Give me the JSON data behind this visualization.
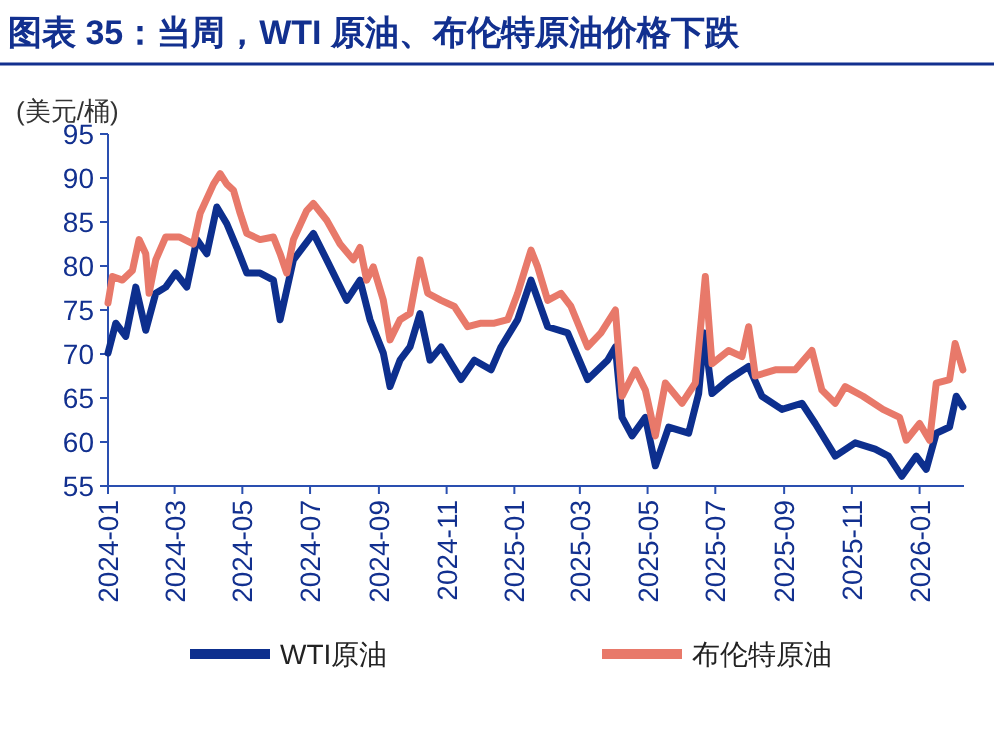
{
  "chart_data": {
    "type": "line",
    "title": "图表 35：当周，WTI 原油、布伦特原油价格下跌",
    "ylabel": "(美元/桶)",
    "xlim": [
      "2024-01-01",
      "2026-02-10"
    ],
    "ylim": [
      55,
      95
    ],
    "yticks": [
      55,
      60,
      65,
      70,
      75,
      80,
      85,
      90,
      95
    ],
    "xticks": [
      "2024-01",
      "2024-03",
      "2024-05",
      "2024-07",
      "2024-09",
      "2024-11",
      "2025-01",
      "2025-03",
      "2025-05",
      "2025-07",
      "2025-09",
      "2025-11",
      "2026-01"
    ],
    "legend": "bottom",
    "series": [
      {
        "name": "WTI原油",
        "color": "#0d2f8e",
        "x": [
          "2024-01-01",
          "2024-01-08",
          "2024-01-17",
          "2024-01-26",
          "2024-02-04",
          "2024-02-13",
          "2024-02-22",
          "2024-03-02",
          "2024-03-12",
          "2024-03-21",
          "2024-03-30",
          "2024-04-08",
          "2024-04-17",
          "2024-04-26",
          "2024-05-05",
          "2024-05-17",
          "2024-05-29",
          "2024-06-04",
          "2024-06-16",
          "2024-07-04",
          "2024-07-16",
          "2024-08-03",
          "2024-08-15",
          "2024-08-24",
          "2024-09-05",
          "2024-09-11",
          "2024-09-20",
          "2024-09-29",
          "2024-10-08",
          "2024-10-17",
          "2024-10-27",
          "2024-11-14",
          "2024-11-26",
          "2024-12-11",
          "2024-12-20",
          "2025-01-04",
          "2025-01-16",
          "2025-01-31",
          "2025-02-18",
          "2025-03-08",
          "2025-03-26",
          "2025-04-02",
          "2025-04-08",
          "2025-04-17",
          "2025-04-29",
          "2025-05-08",
          "2025-05-20",
          "2025-06-07",
          "2025-06-16",
          "2025-06-21",
          "2025-06-28",
          "2025-07-13",
          "2025-07-31",
          "2025-08-12",
          "2025-08-30",
          "2025-09-17",
          "2025-09-29",
          "2025-10-17",
          "2025-11-04",
          "2025-11-22",
          "2025-12-04",
          "2025-12-16",
          "2025-12-29",
          "2026-01-07",
          "2026-01-16",
          "2026-01-28",
          "2026-02-03",
          "2026-02-09"
        ],
        "values": [
          70.1,
          73.5,
          72,
          77.6,
          72.7,
          76.9,
          77.6,
          79.2,
          77.6,
          83,
          81.4,
          86.7,
          84.8,
          82.1,
          79.2,
          79.2,
          78.4,
          73.9,
          80.7,
          83.7,
          80.7,
          76.1,
          78.4,
          73.9,
          70.1,
          66.3,
          69.3,
          70.8,
          74.6,
          69.3,
          70.8,
          67.1,
          69.3,
          68.2,
          70.8,
          73.9,
          78.4,
          73.1,
          72.4,
          67.1,
          69.3,
          70.8,
          62.8,
          60.7,
          62.8,
          57.3,
          61.7,
          61,
          65.5,
          72.4,
          65.5,
          67.1,
          68.6,
          65.2,
          63.7,
          64.4,
          62.1,
          58.4,
          59.9,
          59.2,
          58.4,
          56.1,
          58.4,
          56.9,
          61,
          61.7,
          65.2,
          64
        ]
      },
      {
        "name": "布伦特原油",
        "color": "#e8796a",
        "x": [
          "2024-01-01",
          "2024-01-05",
          "2024-01-14",
          "2024-01-23",
          "2024-01-29",
          "2024-02-04",
          "2024-02-07",
          "2024-02-13",
          "2024-02-22",
          "2024-03-05",
          "2024-03-18",
          "2024-03-24",
          "2024-04-05",
          "2024-04-11",
          "2024-04-17",
          "2024-04-23",
          "2024-04-29",
          "2024-05-05",
          "2024-05-17",
          "2024-05-29",
          "2024-06-04",
          "2024-06-10",
          "2024-06-16",
          "2024-06-28",
          "2024-07-04",
          "2024-07-16",
          "2024-07-28",
          "2024-08-09",
          "2024-08-15",
          "2024-08-21",
          "2024-08-27",
          "2024-09-05",
          "2024-09-11",
          "2024-09-20",
          "2024-09-29",
          "2024-10-08",
          "2024-10-15",
          "2024-10-27",
          "2024-11-08",
          "2024-11-20",
          "2024-12-02",
          "2024-12-14",
          "2024-12-26",
          "2025-01-04",
          "2025-01-16",
          "2025-01-22",
          "2025-01-31",
          "2025-02-12",
          "2025-02-21",
          "2025-03-08",
          "2025-03-20",
          "2025-04-02",
          "2025-04-08",
          "2025-04-20",
          "2025-04-29",
          "2025-05-08",
          "2025-05-17",
          "2025-06-01",
          "2025-06-13",
          "2025-06-22",
          "2025-06-28",
          "2025-07-13",
          "2025-07-25",
          "2025-07-31",
          "2025-08-06",
          "2025-08-24",
          "2025-09-11",
          "2025-09-26",
          "2025-10-05",
          "2025-10-17",
          "2025-10-26",
          "2025-11-11",
          "2025-11-29",
          "2025-12-14",
          "2025-12-20",
          "2026-01-01",
          "2026-01-10",
          "2026-01-16",
          "2026-01-28",
          "2026-02-02",
          "2026-02-09"
        ],
        "values": [
          75.8,
          78.8,
          78.4,
          79.5,
          83,
          81.4,
          76.9,
          80.7,
          83.3,
          83.3,
          82.5,
          86,
          89.3,
          90.5,
          89.3,
          88.6,
          86,
          83.7,
          83,
          83.3,
          81.4,
          79.2,
          83,
          86.3,
          87.1,
          85.2,
          82.5,
          80.7,
          82.1,
          78.4,
          79.9,
          76.1,
          71.6,
          73.9,
          74.6,
          80.7,
          76.9,
          76.1,
          75.4,
          73.1,
          73.5,
          73.5,
          73.9,
          76.9,
          81.8,
          79.9,
          76.1,
          76.9,
          75.4,
          70.8,
          72.4,
          75,
          65.2,
          68.2,
          65.9,
          60.7,
          66.7,
          64.4,
          66.7,
          78.8,
          68.9,
          70.4,
          69.7,
          73.1,
          67.5,
          68.2,
          68.2,
          70.4,
          65.9,
          64.4,
          66.3,
          65.2,
          63.7,
          62.8,
          60.2,
          62.1,
          60.2,
          66.7,
          67.1,
          71.2,
          68.2
        ]
      }
    ]
  }
}
